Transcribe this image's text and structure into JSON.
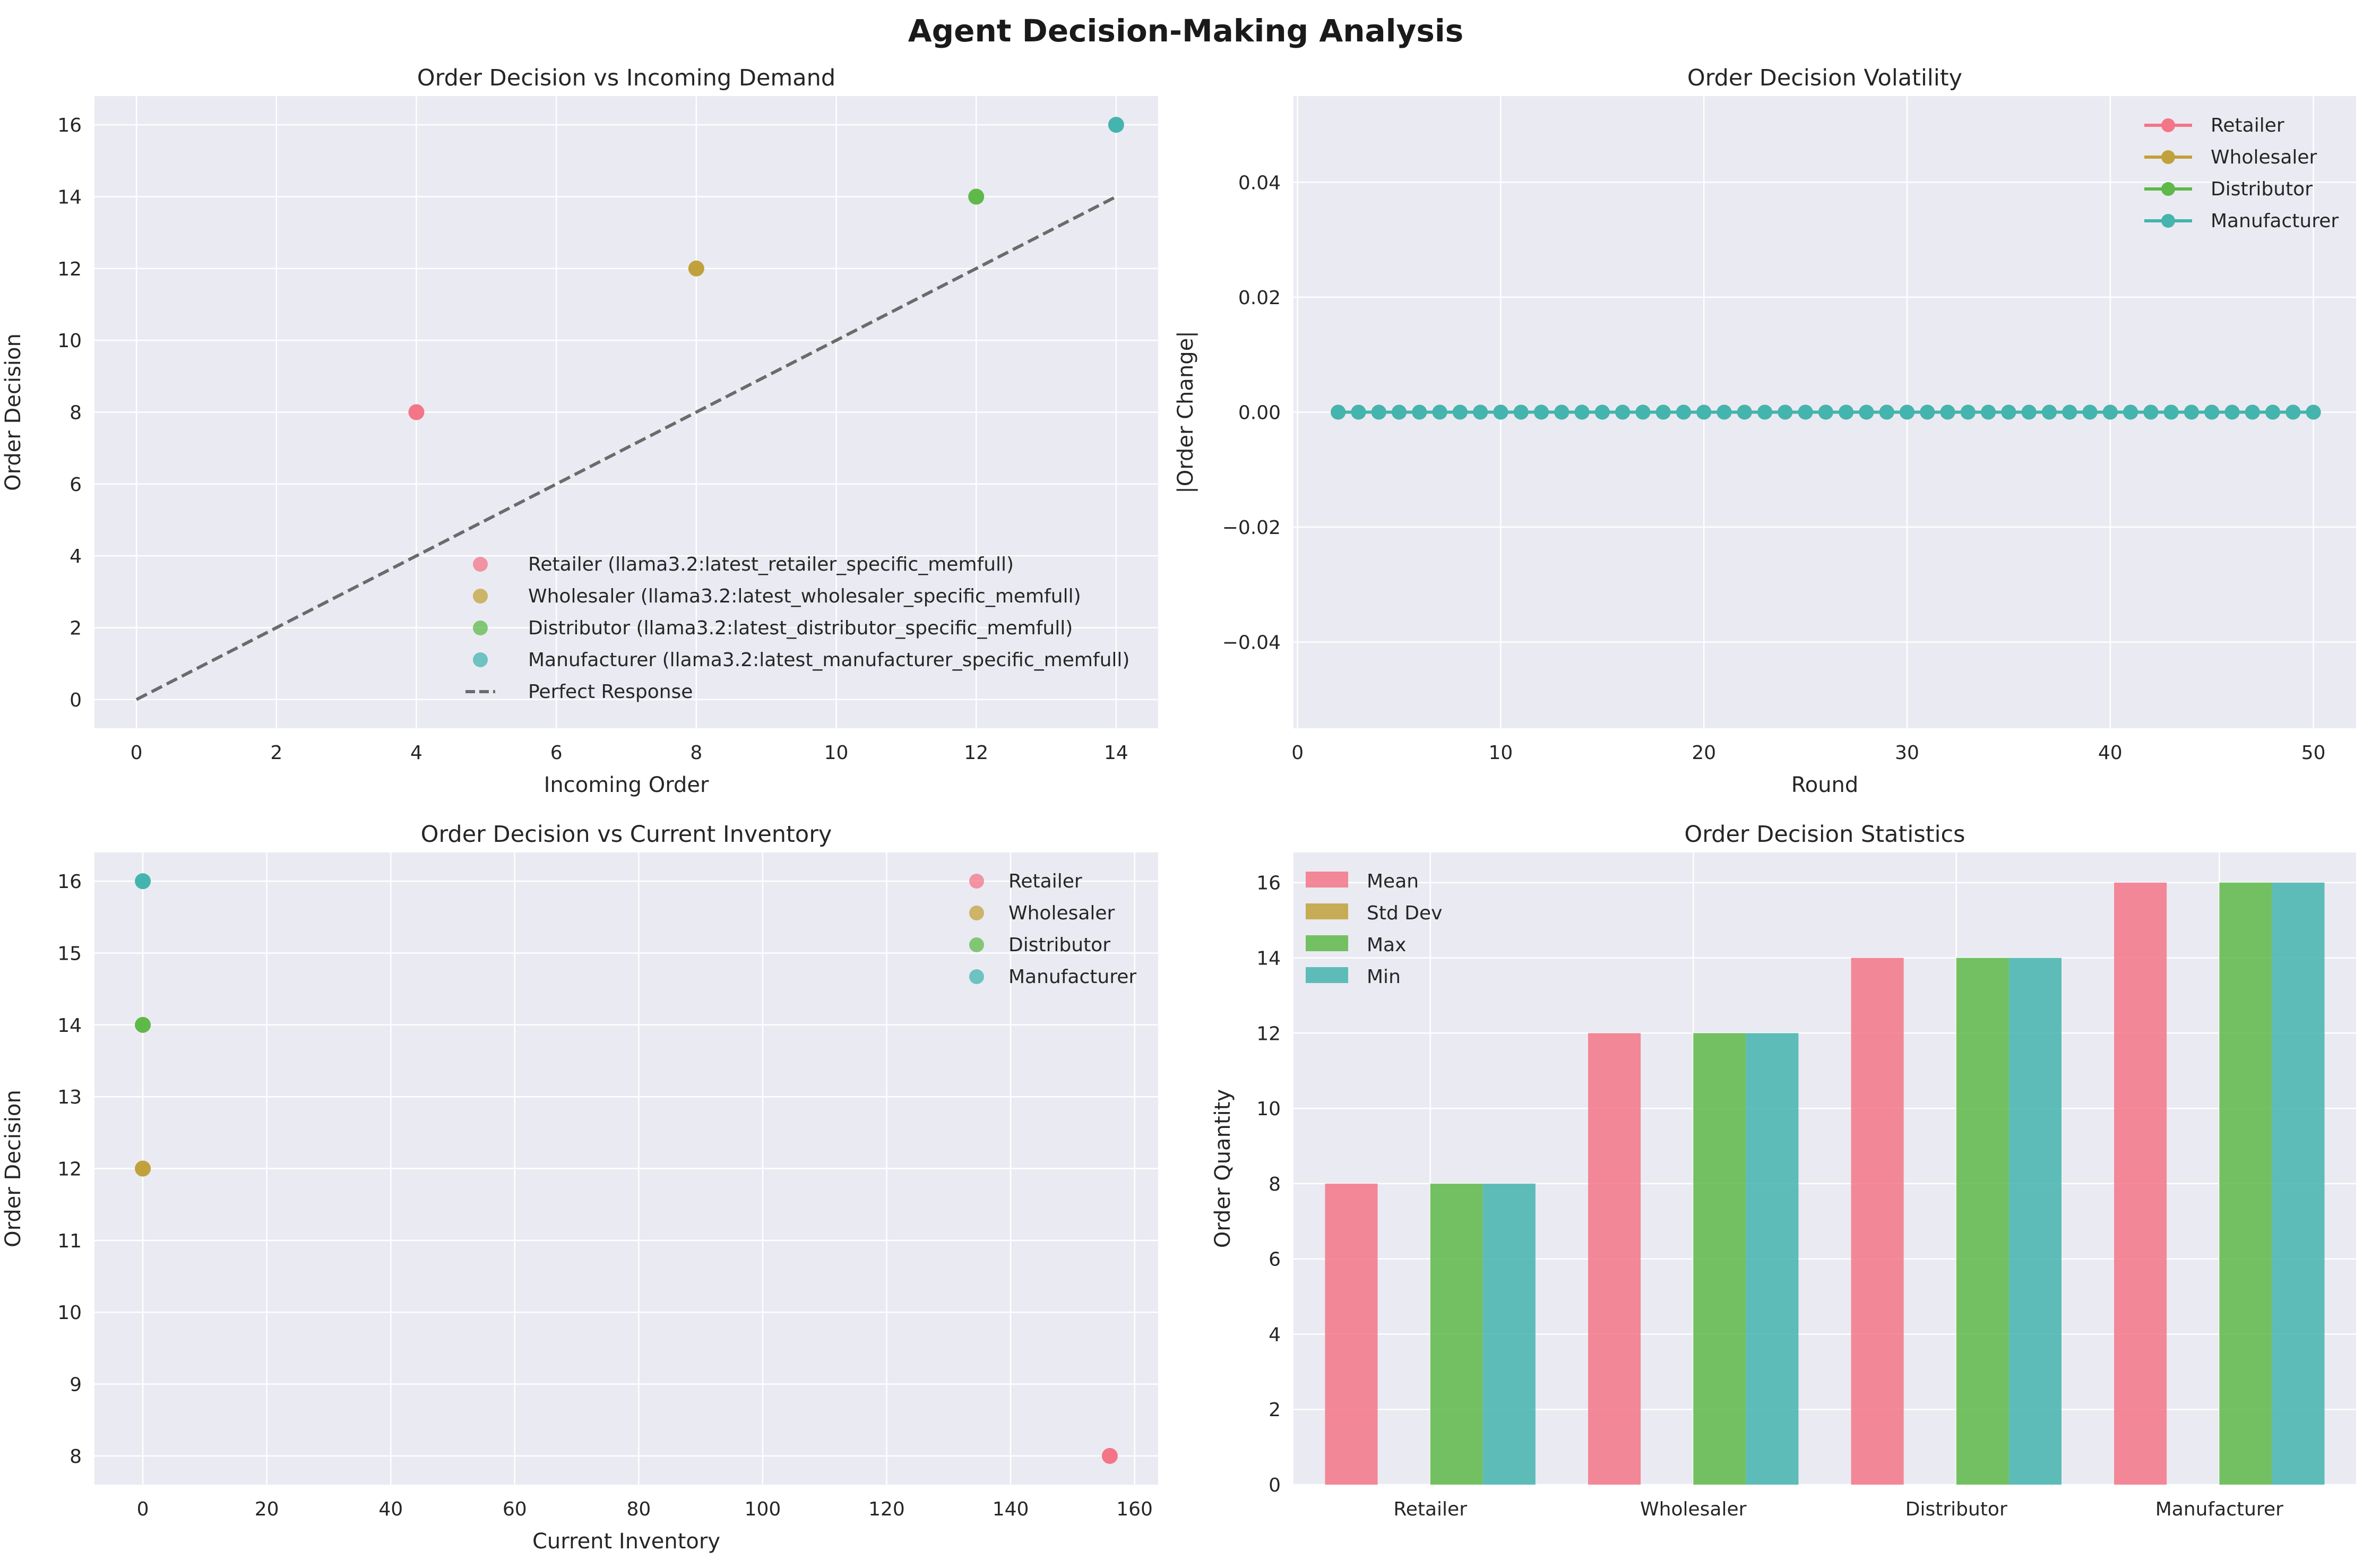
{
  "figure": {
    "title": "Agent Decision-Making Analysis",
    "background": "#ffffff",
    "axes_facecolor": "#eaeaf2",
    "grid_color": "#ffffff"
  },
  "colors": {
    "Retailer": "#f37587",
    "Wholesaler": "#c1a13b",
    "Distributor": "#5eb949",
    "Manufacturer": "#44b4ae",
    "perfect_response": "#6b6b6b"
  },
  "chart_data": [
    {
      "type": "scatter",
      "title": "Order Decision vs Incoming Demand",
      "xlabel": "Incoming Order",
      "ylabel": "Order Decision",
      "xlim": [
        -0.6,
        14.6
      ],
      "ylim": [
        -0.8,
        16.8
      ],
      "xticks": [
        0,
        2,
        4,
        6,
        8,
        10,
        12,
        14
      ],
      "yticks": [
        0,
        2,
        4,
        6,
        8,
        10,
        12,
        14,
        16
      ],
      "grid": true,
      "legend_position": "lower-right",
      "series": [
        {
          "name": "Retailer (llama3.2:latest_retailer_specific_memfull)",
          "color": "#f37587",
          "x": [
            4
          ],
          "y": [
            8
          ]
        },
        {
          "name": "Wholesaler (llama3.2:latest_wholesaler_specific_memfull)",
          "color": "#c1a13b",
          "x": [
            8
          ],
          "y": [
            12
          ]
        },
        {
          "name": "Distributor (llama3.2:latest_distributor_specific_memfull)",
          "color": "#5eb949",
          "x": [
            12
          ],
          "y": [
            14
          ]
        },
        {
          "name": "Manufacturer (llama3.2:latest_manufacturer_specific_memfull)",
          "color": "#44b4ae",
          "x": [
            14
          ],
          "y": [
            16
          ]
        }
      ],
      "reference_line": {
        "name": "Perfect Response",
        "x": [
          0,
          14
        ],
        "y": [
          0,
          14
        ],
        "style": "dashed"
      }
    },
    {
      "type": "line",
      "title": "Order Decision Volatility",
      "xlabel": "Round",
      "ylabel": "|Order Change|",
      "xlim": [
        -0.2,
        52.1
      ],
      "ylim": [
        -0.055,
        0.055
      ],
      "xticks": [
        0,
        10,
        20,
        30,
        40,
        50
      ],
      "yticks": [
        -0.04,
        -0.02,
        0.0,
        0.02,
        0.04
      ],
      "ytick_labels": [
        "−0.04",
        "−0.02",
        "0.00",
        "0.02",
        "0.04"
      ],
      "grid": true,
      "legend_position": "top-right",
      "x_range": [
        2,
        50
      ],
      "series": [
        {
          "name": "Retailer",
          "color": "#f37587",
          "value": 0
        },
        {
          "name": "Wholesaler",
          "color": "#c1a13b",
          "value": 0
        },
        {
          "name": "Distributor",
          "color": "#5eb949",
          "value": 0
        },
        {
          "name": "Manufacturer",
          "color": "#44b4ae",
          "value": 0
        }
      ]
    },
    {
      "type": "scatter",
      "title": "Order Decision vs Current Inventory",
      "xlabel": "Current Inventory",
      "ylabel": "Order Decision",
      "xlim": [
        -7.8,
        163.8
      ],
      "ylim": [
        7.6,
        16.4
      ],
      "xticks": [
        0,
        20,
        40,
        60,
        80,
        100,
        120,
        140,
        160
      ],
      "yticks": [
        8,
        9,
        10,
        11,
        12,
        13,
        14,
        15,
        16
      ],
      "grid": true,
      "legend_position": "top-right",
      "series": [
        {
          "name": "Retailer",
          "color": "#f37587",
          "x": [
            156
          ],
          "y": [
            8
          ]
        },
        {
          "name": "Wholesaler",
          "color": "#c1a13b",
          "x": [
            0
          ],
          "y": [
            12
          ]
        },
        {
          "name": "Distributor",
          "color": "#5eb949",
          "x": [
            0
          ],
          "y": [
            14
          ]
        },
        {
          "name": "Manufacturer",
          "color": "#44b4ae",
          "x": [
            0
          ],
          "y": [
            16
          ]
        }
      ]
    },
    {
      "type": "bar",
      "title": "Order Decision Statistics",
      "xlabel": "",
      "ylabel": "Order Quantity",
      "ylim": [
        0,
        16.8
      ],
      "yticks": [
        0,
        2,
        4,
        6,
        8,
        10,
        12,
        14,
        16
      ],
      "grid": true,
      "legend_position": "top-left",
      "categories": [
        "Retailer",
        "Wholesaler",
        "Distributor",
        "Manufacturer"
      ],
      "series": [
        {
          "name": "Mean",
          "color": "#f37587",
          "values": [
            8,
            12,
            14,
            16
          ]
        },
        {
          "name": "Std Dev",
          "color": "#c1a13b",
          "values": [
            0,
            0,
            0,
            0
          ]
        },
        {
          "name": "Max",
          "color": "#5eb949",
          "values": [
            8,
            12,
            14,
            16
          ]
        },
        {
          "name": "Min",
          "color": "#44b4ae",
          "values": [
            8,
            12,
            14,
            16
          ]
        }
      ]
    }
  ]
}
